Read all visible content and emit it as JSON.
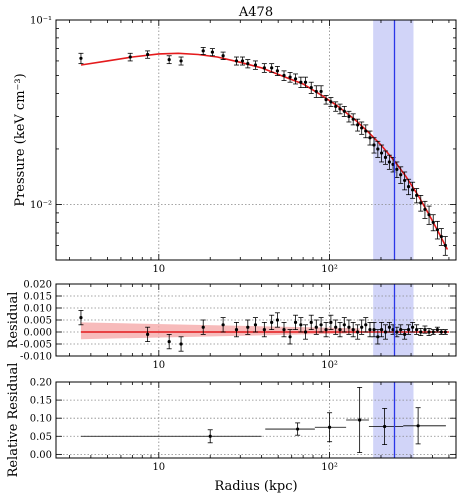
{
  "chart_data": [
    {
      "type": "scatter",
      "title": "A478",
      "xlabel": "",
      "ylabel": "Pressure (keV cm⁻³)",
      "xscale": "log",
      "yscale": "log",
      "xlim": [
        2.5,
        550
      ],
      "ylim": [
        0.005,
        0.1
      ],
      "x_tick_labels": [
        "10",
        "10²"
      ],
      "x_tick_values": [
        10,
        100
      ],
      "y_tick_labels": [
        "10⁻²",
        "10⁻¹"
      ],
      "y_tick_values": [
        0.01,
        0.1
      ],
      "grid": true,
      "vertical_line_x": 240,
      "shaded_band_x": [
        180,
        310
      ],
      "series": [
        {
          "style": "points-with-errorbars",
          "color": "#000000",
          "x": [
            3.5,
            6.8,
            8.6,
            11.5,
            13.5,
            18.2,
            20.6,
            23.8,
            28.5,
            30.9,
            33.2,
            36.8,
            41.5,
            45.8,
            49.5,
            54.1,
            58.7,
            63.2,
            67.9,
            72.3,
            78.1,
            83.6,
            89.2,
            95.4,
            101.8,
            108.6,
            115.1,
            122.0,
            129.8,
            137.5,
            146.0,
            154.2,
            162.9,
            172.4,
            182.1,
            191.7,
            201.6,
            212.5,
            224.0,
            235.4,
            247.8,
            261.0,
            275.2,
            290.1,
            306.4,
            323.5,
            342.0,
            361.8,
            382.4,
            404.6,
            428.0,
            451.3,
            476.2
          ],
          "y": [
            0.062,
            0.063,
            0.065,
            0.061,
            0.06,
            0.068,
            0.067,
            0.064,
            0.06,
            0.06,
            0.058,
            0.057,
            0.055,
            0.055,
            0.053,
            0.05,
            0.049,
            0.048,
            0.046,
            0.046,
            0.043,
            0.041,
            0.041,
            0.037,
            0.036,
            0.034,
            0.033,
            0.032,
            0.03,
            0.029,
            0.027,
            0.026,
            0.025,
            0.023,
            0.021,
            0.02,
            0.019,
            0.018,
            0.017,
            0.0165,
            0.0155,
            0.0145,
            0.0135,
            0.0125,
            0.012,
            0.0112,
            0.0102,
            0.0094,
            0.0088,
            0.008,
            0.0073,
            0.0067,
            0.006
          ],
          "y_err": [
            0.004,
            0.003,
            0.003,
            0.003,
            0.003,
            0.003,
            0.003,
            0.003,
            0.003,
            0.003,
            0.003,
            0.003,
            0.003,
            0.003,
            0.003,
            0.003,
            0.003,
            0.003,
            0.003,
            0.003,
            0.003,
            0.003,
            0.003,
            0.002,
            0.002,
            0.002,
            0.002,
            0.002,
            0.002,
            0.002,
            0.002,
            0.002,
            0.002,
            0.002,
            0.002,
            0.002,
            0.002,
            0.0015,
            0.0015,
            0.0015,
            0.0015,
            0.0015,
            0.0015,
            0.0012,
            0.0012,
            0.001,
            0.001,
            0.001,
            0.001,
            0.0008,
            0.0008,
            0.0007,
            0.0007
          ]
        },
        {
          "style": "line",
          "color": "#e41a1c",
          "x": [
            3.5,
            5,
            7,
            10,
            13,
            17,
            22,
            30,
            40,
            55,
            70,
            90,
            110,
            140,
            170,
            200,
            240,
            280,
            330,
            380,
            430,
            490
          ],
          "y": [
            0.057,
            0.06,
            0.063,
            0.0655,
            0.066,
            0.065,
            0.063,
            0.059,
            0.055,
            0.049,
            0.045,
            0.039,
            0.0345,
            0.029,
            0.0245,
            0.021,
            0.0172,
            0.0142,
            0.0112,
            0.0089,
            0.0072,
            0.0057
          ]
        }
      ]
    },
    {
      "type": "scatter",
      "title": "",
      "xlabel": "",
      "ylabel": "Residual",
      "xscale": "log",
      "xlim": [
        2.5,
        550
      ],
      "ylim": [
        -0.01,
        0.02
      ],
      "x_tick_labels": [
        "10",
        "10²"
      ],
      "x_tick_values": [
        10,
        100
      ],
      "y_tick_labels": [
        "0.020",
        "0.015",
        "0.010",
        "0.005",
        "0.000",
        "-0.005",
        "-0.010"
      ],
      "y_tick_values": [
        0.02,
        0.015,
        0.01,
        0.005,
        0.0,
        -0.005,
        -0.01
      ],
      "grid": true,
      "vertical_line_x": 240,
      "shaded_band_x": [
        180,
        310
      ],
      "series": [
        {
          "style": "points-with-errorbars",
          "color": "#000000",
          "x": [
            3.5,
            8.6,
            11.5,
            13.5,
            18.2,
            23.8,
            28.5,
            33.2,
            36.8,
            41.5,
            45.8,
            49.5,
            54.1,
            58.7,
            63.2,
            67.9,
            72.3,
            78.1,
            83.6,
            89.2,
            95.4,
            101.8,
            108.6,
            115.1,
            122.0,
            129.8,
            137.5,
            146.0,
            154.2,
            162.9,
            172.4,
            182.1,
            191.7,
            201.6,
            212.5,
            224.0,
            235.4,
            247.8,
            261.0,
            275.2,
            290.1,
            306.4,
            323.5,
            342.0,
            361.8,
            382.4,
            404.6,
            428.0,
            451.3,
            476.2
          ],
          "y": [
            0.006,
            -0.001,
            -0.004,
            -0.005,
            0.002,
            0.003,
            0.001,
            0.002,
            0.003,
            0.001,
            0.004,
            0.005,
            0.001,
            -0.002,
            0.004,
            0.003,
            0.0,
            0.004,
            0.002,
            0.003,
            0.001,
            0.004,
            0.002,
            0.001,
            0.003,
            0.002,
            0.001,
            0.0,
            0.002,
            0.003,
            0.001,
            0.001,
            -0.002,
            0.001,
            0.0,
            0.002,
            0.001,
            0.0,
            0.001,
            -0.001,
            0.001,
            0.002,
            0.001,
            0.0,
            0.001,
            0.0,
            0.0,
            0.001,
            0.0,
            0.0
          ],
          "y_err": [
            0.003,
            0.003,
            0.003,
            0.003,
            0.003,
            0.003,
            0.003,
            0.003,
            0.003,
            0.003,
            0.003,
            0.003,
            0.003,
            0.003,
            0.003,
            0.003,
            0.003,
            0.003,
            0.003,
            0.003,
            0.003,
            0.003,
            0.003,
            0.003,
            0.003,
            0.003,
            0.003,
            0.003,
            0.003,
            0.003,
            0.003,
            0.003,
            0.003,
            0.003,
            0.003,
            0.002,
            0.002,
            0.002,
            0.002,
            0.002,
            0.002,
            0.002,
            0.002,
            0.0015,
            0.0015,
            0.0015,
            0.001,
            0.001,
            0.001,
            0.001
          ]
        },
        {
          "style": "band",
          "color": "#f4a4a4",
          "x": [
            3.5,
            150
          ],
          "y_low": [
            -0.003,
            -0.0005
          ],
          "y_high": [
            0.004,
            0.0015
          ]
        },
        {
          "style": "line",
          "color": "#e41a1c",
          "x": [
            3.5,
            500
          ],
          "y": [
            0.0,
            0.0
          ]
        }
      ]
    },
    {
      "type": "scatter",
      "title": "",
      "xlabel": "Radius (kpc)",
      "ylabel": "Relative Residual",
      "xscale": "log",
      "xlim": [
        2.5,
        550
      ],
      "ylim": [
        -0.01,
        0.2
      ],
      "x_tick_labels": [
        "10",
        "10²"
      ],
      "x_tick_values": [
        10,
        100
      ],
      "y_tick_labels": [
        "0.20",
        "0.15",
        "0.10",
        "0.05",
        "0.00"
      ],
      "y_tick_values": [
        0.2,
        0.15,
        0.1,
        0.05,
        0.0
      ],
      "grid": true,
      "vertical_line_x": 240,
      "shaded_band_x": [
        180,
        310
      ],
      "series": [
        {
          "style": "points-with-errorbars",
          "color": "#000000",
          "x": [
            20,
            65,
            100,
            150,
            210,
            330
          ],
          "x_low": [
            3.5,
            42,
            82,
            125,
            170,
            270
          ],
          "x_high": [
            40,
            82,
            125,
            170,
            270,
            480
          ],
          "y": [
            0.05,
            0.07,
            0.075,
            0.095,
            0.077,
            0.079
          ],
          "y_err": [
            0.018,
            0.017,
            0.04,
            0.09,
            0.05,
            0.05
          ]
        }
      ]
    }
  ]
}
